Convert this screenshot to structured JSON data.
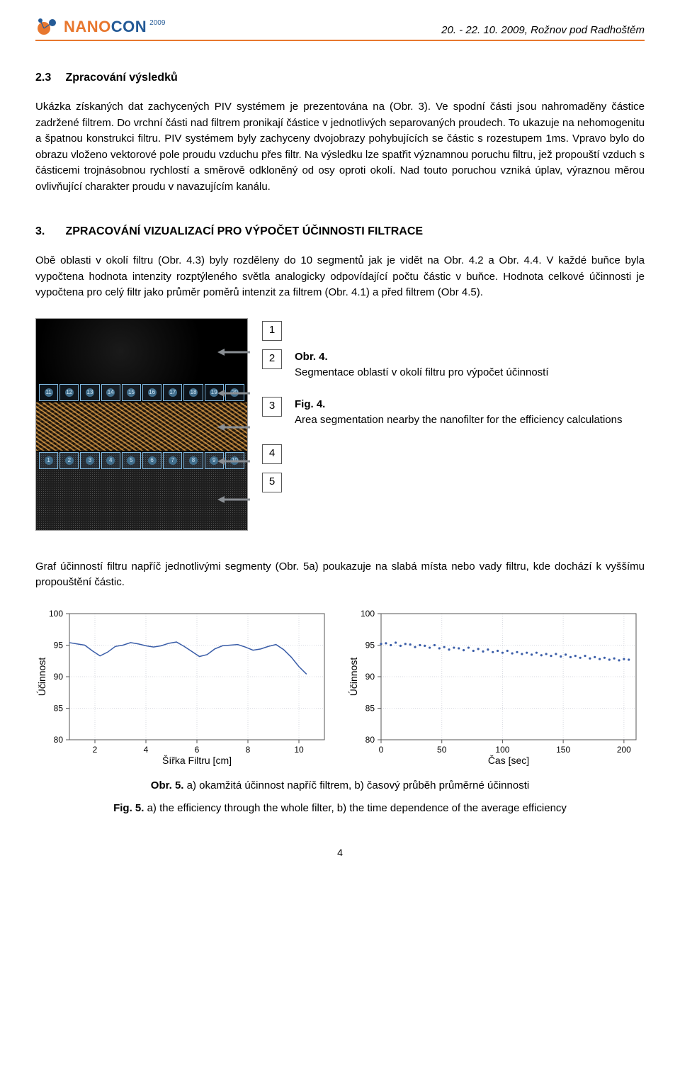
{
  "header": {
    "logo_nano": "NANO",
    "logo_con": "CON",
    "logo_year": "2009",
    "right": "20. - 22. 10. 2009, Rožnov pod Radhoštěm"
  },
  "section23": {
    "num": "2.3",
    "title": "Zpracování výsledků",
    "para": "Ukázka získaných dat zachycených PIV systémem je prezentována na (Obr. 3). Ve spodní části jsou nahromaděny částice zadržené filtrem. Do vrchní části nad filtrem pronikají částice v jednotlivých separovaných proudech. To ukazuje na nehomogenitu a špatnou konstrukci filtru. PIV systémem byly zachyceny dvojobrazy pohybujících se částic s rozestupem 1ms. Vpravo bylo do obrazu vloženo vektorové pole proudu vzduchu přes filtr. Na výsledku lze spatřit významnou poruchu filtru, jež propouští vzduch s částicemi trojnásobnou rychlostí a směrově odkloněný od osy oproti okolí. Nad touto poruchou vzniká úplav, výraznou měrou ovlivňující charakter proudu v navazujícím kanálu."
  },
  "section3": {
    "num": "3.",
    "title": "ZPRACOVÁNÍ VIZUALIZACÍ PRO VÝPOČET ÚČINNOSTI FILTRACE",
    "para": "Obě oblasti v okolí filtru (Obr. 4.3) byly rozděleny do 10 segmentů jak je vidět na Obr. 4.2 a Obr. 4.4. V každé buňce byla vypočtena hodnota intenzity rozptýleného světla analogicky odpovídající počtu částic v buňce. Hodnota celkové účinnosti je vypočtena pro celý filtr jako průměr poměrů intenzit za filtrem (Obr. 4.1) a před filtrem (Obr 4.5)."
  },
  "fig4": {
    "boxes": [
      "1",
      "2",
      "3",
      "4",
      "5"
    ],
    "top_cells": [
      "11",
      "12",
      "13",
      "14",
      "15",
      "16",
      "17",
      "18",
      "19",
      "20"
    ],
    "bot_cells": [
      "1",
      "2",
      "3",
      "4",
      "5",
      "6",
      "7",
      "8",
      "9",
      "10"
    ],
    "cap_cz_title": "Obr. 4.",
    "cap_cz_desc": "Segmentace oblastí v okolí filtru pro výpočet účinností",
    "cap_en_title": "Fig. 4.",
    "cap_en_desc": "Area segmentation nearby the nanofilter for the efficiency calculations"
  },
  "para_after_fig4": "Graf účinností filtru napříč jednotlivými segmenty (Obr. 5a) poukazuje na slabá místa nebo vady filtru, kde dochází k vyššímu propouštění částic.",
  "chart_a": {
    "type": "line",
    "xlabel": "Šířka Filtru [cm]",
    "ylabel": "Účinnost",
    "xlim": [
      1,
      11
    ],
    "ylim": [
      80,
      100
    ],
    "xticks": [
      2,
      4,
      6,
      8,
      10
    ],
    "yticks": [
      80,
      85,
      90,
      95,
      100
    ],
    "line_color": "#3a5da8",
    "grid_color": "#d9dbe2",
    "axis_color": "#555",
    "background": "#ffffff",
    "values": [
      [
        1,
        95.4
      ],
      [
        1.3,
        95.2
      ],
      [
        1.6,
        95.0
      ],
      [
        1.9,
        94.1
      ],
      [
        2.2,
        93.3
      ],
      [
        2.5,
        93.9
      ],
      [
        2.8,
        94.8
      ],
      [
        3.1,
        95.0
      ],
      [
        3.4,
        95.4
      ],
      [
        3.7,
        95.2
      ],
      [
        4.0,
        94.9
      ],
      [
        4.3,
        94.7
      ],
      [
        4.6,
        94.9
      ],
      [
        4.9,
        95.3
      ],
      [
        5.2,
        95.5
      ],
      [
        5.5,
        94.8
      ],
      [
        5.8,
        94.0
      ],
      [
        6.1,
        93.2
      ],
      [
        6.4,
        93.5
      ],
      [
        6.7,
        94.4
      ],
      [
        7.0,
        94.9
      ],
      [
        7.3,
        95.0
      ],
      [
        7.6,
        95.1
      ],
      [
        7.9,
        94.7
      ],
      [
        8.2,
        94.2
      ],
      [
        8.5,
        94.4
      ],
      [
        8.8,
        94.8
      ],
      [
        9.1,
        95.1
      ],
      [
        9.4,
        94.3
      ],
      [
        9.7,
        93.1
      ],
      [
        10.0,
        91.6
      ],
      [
        10.3,
        90.4
      ]
    ]
  },
  "chart_b": {
    "type": "scatter",
    "xlabel": "Čas [sec]",
    "ylabel": "Účinnost",
    "xlim": [
      0,
      210
    ],
    "ylim": [
      80,
      100
    ],
    "xticks": [
      0,
      50,
      100,
      150,
      200
    ],
    "yticks": [
      80,
      85,
      90,
      95,
      100
    ],
    "point_color": "#3a5da8",
    "grid_color": "#d9dbe2",
    "axis_color": "#555",
    "background": "#ffffff",
    "values": [
      [
        0,
        95.2
      ],
      [
        4,
        95.3
      ],
      [
        8,
        95.0
      ],
      [
        12,
        95.4
      ],
      [
        16,
        94.9
      ],
      [
        20,
        95.2
      ],
      [
        24,
        95.1
      ],
      [
        28,
        94.7
      ],
      [
        32,
        95.0
      ],
      [
        36,
        94.9
      ],
      [
        40,
        94.6
      ],
      [
        44,
        95.0
      ],
      [
        48,
        94.5
      ],
      [
        52,
        94.7
      ],
      [
        56,
        94.3
      ],
      [
        60,
        94.6
      ],
      [
        64,
        94.5
      ],
      [
        68,
        94.2
      ],
      [
        72,
        94.6
      ],
      [
        76,
        94.1
      ],
      [
        80,
        94.4
      ],
      [
        84,
        94.0
      ],
      [
        88,
        94.3
      ],
      [
        92,
        93.9
      ],
      [
        96,
        94.1
      ],
      [
        100,
        93.8
      ],
      [
        104,
        94.1
      ],
      [
        108,
        93.7
      ],
      [
        112,
        93.9
      ],
      [
        116,
        93.6
      ],
      [
        120,
        93.8
      ],
      [
        124,
        93.5
      ],
      [
        128,
        93.8
      ],
      [
        132,
        93.4
      ],
      [
        136,
        93.6
      ],
      [
        140,
        93.3
      ],
      [
        144,
        93.6
      ],
      [
        148,
        93.2
      ],
      [
        152,
        93.5
      ],
      [
        156,
        93.1
      ],
      [
        160,
        93.3
      ],
      [
        164,
        93.0
      ],
      [
        168,
        93.3
      ],
      [
        172,
        92.9
      ],
      [
        176,
        93.1
      ],
      [
        180,
        92.8
      ],
      [
        184,
        93.0
      ],
      [
        188,
        92.7
      ],
      [
        192,
        92.9
      ],
      [
        196,
        92.6
      ],
      [
        200,
        92.8
      ],
      [
        204,
        92.7
      ]
    ]
  },
  "fig5": {
    "cap_cz_title": "Obr. 5.",
    "cap_cz_desc": " a) okamžitá účinnost napříč filtrem, b) časový průběh průměrné účinnosti",
    "cap_en_title": "Fig. 5.",
    "cap_en_desc": " a) the efficiency through the whole filter, b) the time dependence of the average efficiency"
  },
  "pagenum": "4"
}
